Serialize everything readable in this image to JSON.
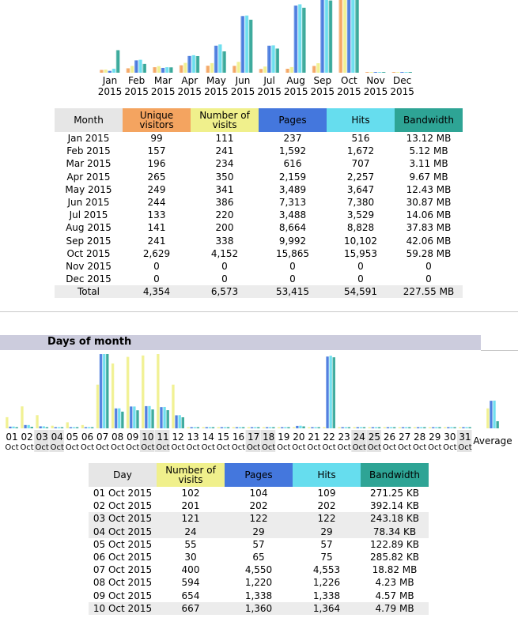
{
  "colors": {
    "visitors": "#f4a460",
    "visits": "#f0f08c",
    "pages": "#4477dd",
    "hits": "#66ddee",
    "bandwidth": "#2ea495",
    "header_grey": "#e6e6e6",
    "section_bar": "#ccccdd"
  },
  "monthly": {
    "headers": {
      "month": "Month",
      "unique_visitors": "Unique visitors",
      "visits": "Number of visits",
      "pages": "Pages",
      "hits": "Hits",
      "bandwidth": "Bandwidth"
    },
    "rows": [
      {
        "month": "Jan 2015",
        "visitors": "99",
        "visits": "111",
        "pages": "237",
        "hits": "516",
        "bandwidth": "13.12 MB"
      },
      {
        "month": "Feb 2015",
        "visitors": "157",
        "visits": "241",
        "pages": "1,592",
        "hits": "1,672",
        "bandwidth": "5.12 MB"
      },
      {
        "month": "Mar 2015",
        "visitors": "196",
        "visits": "234",
        "pages": "616",
        "hits": "707",
        "bandwidth": "3.11 MB"
      },
      {
        "month": "Apr 2015",
        "visitors": "265",
        "visits": "350",
        "pages": "2,159",
        "hits": "2,257",
        "bandwidth": "9.67 MB"
      },
      {
        "month": "May 2015",
        "visitors": "249",
        "visits": "341",
        "pages": "3,489",
        "hits": "3,647",
        "bandwidth": "12.43 MB"
      },
      {
        "month": "Jun 2015",
        "visitors": "244",
        "visits": "386",
        "pages": "7,313",
        "hits": "7,380",
        "bandwidth": "30.87 MB"
      },
      {
        "month": "Jul 2015",
        "visitors": "133",
        "visits": "220",
        "pages": "3,488",
        "hits": "3,529",
        "bandwidth": "14.06 MB"
      },
      {
        "month": "Aug 2015",
        "visitors": "141",
        "visits": "200",
        "pages": "8,664",
        "hits": "8,828",
        "bandwidth": "37.83 MB"
      },
      {
        "month": "Sep 2015",
        "visitors": "241",
        "visits": "338",
        "pages": "9,992",
        "hits": "10,102",
        "bandwidth": "42.06 MB"
      },
      {
        "month": "Oct 2015",
        "visitors": "2,629",
        "visits": "4,152",
        "pages": "15,865",
        "hits": "15,953",
        "bandwidth": "59.28 MB"
      },
      {
        "month": "Nov 2015",
        "visitors": "0",
        "visits": "0",
        "pages": "0",
        "hits": "0",
        "bandwidth": "0"
      },
      {
        "month": "Dec 2015",
        "visitors": "0",
        "visits": "0",
        "pages": "0",
        "hits": "0",
        "bandwidth": "0"
      }
    ],
    "total": {
      "label": "Total",
      "visitors": "4,354",
      "visits": "6,573",
      "pages": "53,415",
      "hits": "54,591",
      "bandwidth": "227.55 MB"
    }
  },
  "days_section": {
    "title": "Days of month",
    "average_label": "Average",
    "headers": {
      "day": "Day",
      "visits": "Number of visits",
      "pages": "Pages",
      "hits": "Hits",
      "bandwidth": "Bandwidth"
    },
    "rows": [
      {
        "day": "01 Oct 2015",
        "visits": "102",
        "pages": "104",
        "hits": "109",
        "bandwidth": "271.25 KB",
        "weekend": false
      },
      {
        "day": "02 Oct 2015",
        "visits": "201",
        "pages": "202",
        "hits": "202",
        "bandwidth": "392.14 KB",
        "weekend": false
      },
      {
        "day": "03 Oct 2015",
        "visits": "121",
        "pages": "122",
        "hits": "122",
        "bandwidth": "243.18 KB",
        "weekend": true
      },
      {
        "day": "04 Oct 2015",
        "visits": "24",
        "pages": "29",
        "hits": "29",
        "bandwidth": "78.34 KB",
        "weekend": true
      },
      {
        "day": "05 Oct 2015",
        "visits": "55",
        "pages": "57",
        "hits": "57",
        "bandwidth": "122.89 KB",
        "weekend": false
      },
      {
        "day": "06 Oct 2015",
        "visits": "30",
        "pages": "65",
        "hits": "75",
        "bandwidth": "285.82 KB",
        "weekend": false
      },
      {
        "day": "07 Oct 2015",
        "visits": "400",
        "pages": "4,550",
        "hits": "4,553",
        "bandwidth": "18.82 MB",
        "weekend": false
      },
      {
        "day": "08 Oct 2015",
        "visits": "594",
        "pages": "1,220",
        "hits": "1,226",
        "bandwidth": "4.23 MB",
        "weekend": false
      },
      {
        "day": "09 Oct 2015",
        "visits": "654",
        "pages": "1,338",
        "hits": "1,338",
        "bandwidth": "4.57 MB",
        "weekend": false
      },
      {
        "day": "10 Oct 2015",
        "visits": "667",
        "pages": "1,360",
        "hits": "1,364",
        "bandwidth": "4.79 MB",
        "weekend": true
      }
    ]
  },
  "chart_data": [
    {
      "type": "bar",
      "categories": [
        "Jan 2015",
        "Feb 2015",
        "Mar 2015",
        "Apr 2015",
        "May 2015",
        "Jun 2015",
        "Jul 2015",
        "Aug 2015",
        "Sep 2015",
        "Oct 2015",
        "Nov 2015",
        "Dec 2015"
      ],
      "tick_top": [
        "Jan",
        "Feb",
        "Mar",
        "Apr",
        "May",
        "Jun",
        "Jul",
        "Aug",
        "Sep",
        "Oct",
        "Nov",
        "Dec"
      ],
      "tick_bottom": [
        "2015",
        "2015",
        "2015",
        "2015",
        "2015",
        "2015",
        "2015",
        "2015",
        "2015",
        "2015",
        "2015",
        "2015"
      ],
      "series": [
        {
          "name": "Unique visitors",
          "values": [
            99,
            157,
            196,
            265,
            249,
            244,
            133,
            141,
            241,
            2629,
            0,
            0
          ]
        },
        {
          "name": "Number of visits",
          "values": [
            111,
            241,
            234,
            350,
            341,
            386,
            220,
            200,
            338,
            4152,
            0,
            0
          ]
        },
        {
          "name": "Pages",
          "values": [
            237,
            1592,
            616,
            2159,
            3489,
            7313,
            3488,
            8664,
            9992,
            15865,
            0,
            0
          ]
        },
        {
          "name": "Hits",
          "values": [
            516,
            1672,
            707,
            2257,
            3647,
            7380,
            3529,
            8828,
            10102,
            15953,
            0,
            0
          ]
        },
        {
          "name": "Bandwidth",
          "values": [
            13.12,
            5.12,
            3.11,
            9.67,
            12.43,
            30.87,
            14.06,
            37.83,
            42.06,
            59.28,
            0,
            0
          ]
        }
      ]
    },
    {
      "type": "bar",
      "categories": [
        "01",
        "02",
        "03",
        "04",
        "05",
        "06",
        "07",
        "08",
        "09",
        "10",
        "11",
        "12",
        "13",
        "14",
        "15",
        "16",
        "17",
        "18",
        "19",
        "20",
        "21",
        "22",
        "23",
        "24",
        "25",
        "26",
        "27",
        "28",
        "29",
        "30",
        "31"
      ],
      "tick_bottom": [
        "Oct",
        "Oct",
        "Oct",
        "Oct",
        "Oct",
        "Oct",
        "Oct",
        "Oct",
        "Oct",
        "Oct",
        "Oct",
        "Oct",
        "Oct",
        "Oct",
        "Oct",
        "Oct",
        "Oct",
        "Oct",
        "Oct",
        "Oct",
        "Oct",
        "Oct",
        "Oct",
        "Oct",
        "Oct",
        "Oct",
        "Oct",
        "Oct",
        "Oct",
        "Oct",
        "Oct"
      ],
      "weekend_days": [
        "03",
        "04",
        "10",
        "11",
        "17",
        "18",
        "24",
        "25",
        "31"
      ],
      "series": [
        {
          "name": "Number of visits",
          "values": [
            102,
            201,
            121,
            24,
            55,
            30,
            400,
            594,
            654,
            667,
            680,
            400,
            8,
            5,
            6,
            6,
            6,
            5,
            5,
            8,
            6,
            10,
            4,
            4,
            4,
            4,
            4,
            4,
            4,
            4,
            4
          ]
        },
        {
          "name": "Pages",
          "values": [
            104,
            202,
            122,
            29,
            57,
            65,
            4550,
            1220,
            1338,
            1360,
            1300,
            800,
            10,
            8,
            10,
            10,
            10,
            8,
            8,
            150,
            10,
            4400,
            5,
            5,
            5,
            5,
            5,
            5,
            5,
            5,
            5
          ]
        },
        {
          "name": "Hits",
          "values": [
            109,
            202,
            122,
            29,
            57,
            75,
            4553,
            1226,
            1338,
            1364,
            1310,
            810,
            12,
            9,
            11,
            11,
            11,
            9,
            9,
            160,
            12,
            4450,
            6,
            6,
            6,
            6,
            6,
            6,
            6,
            6,
            6
          ]
        },
        {
          "name": "Bandwidth",
          "values": [
            0.27,
            0.39,
            0.24,
            0.08,
            0.12,
            0.29,
            18.82,
            4.23,
            4.57,
            4.79,
            4.6,
            2.8,
            0.05,
            0.04,
            0.05,
            0.05,
            0.05,
            0.04,
            0.04,
            0.5,
            0.05,
            18.0,
            0.03,
            0.03,
            0.03,
            0.03,
            0.03,
            0.03,
            0.03,
            0.03,
            0.03
          ]
        }
      ],
      "average": {
        "visits": 183,
        "pages": 1690,
        "hits": 1700,
        "bandwidth": 1.8
      }
    }
  ]
}
